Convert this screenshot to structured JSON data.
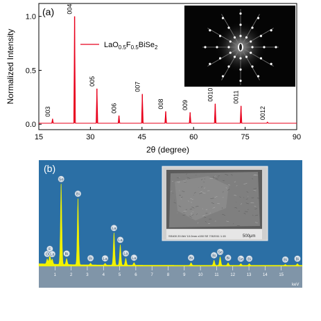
{
  "panel_a": {
    "label": "(a)",
    "legend": {
      "prefix": "LaO",
      "o_sub": "0.5",
      "f": "F",
      "f_sub": "0.5",
      "suffix": "BiSe",
      "se_sub": "2"
    }
  },
  "panel_b": {
    "label": "(b)",
    "x_unit": "keV",
    "inset_scale": "500μm",
    "inset_caption": "SS400 20.0kV 10.0mm x150 SE 7/3/2011 1:15"
  },
  "chart_data": [
    {
      "type": "line",
      "title": "",
      "xlabel": "2θ (degree)",
      "ylabel": "Normalized Intensity",
      "xlim": [
        15,
        90
      ],
      "ylim": [
        -0.05,
        1.12
      ],
      "xticks": [
        15,
        30,
        45,
        60,
        75,
        90
      ],
      "yticks": [
        0.0,
        0.5,
        1.0
      ],
      "ytick_labels": [
        "0.0",
        "0.5",
        "1.0"
      ],
      "grid": false,
      "legend_position": "top-right",
      "series": [
        {
          "name": "LaO0.5F0.5BiSe2",
          "color": "#e8001c",
          "baseline": 0.01,
          "peaks": [
            {
              "label": "003",
              "x": 19.0,
              "y": 0.05
            },
            {
              "label": "004",
              "x": 25.4,
              "y": 1.0
            },
            {
              "label": "005",
              "x": 31.9,
              "y": 0.33
            },
            {
              "label": "006",
              "x": 38.3,
              "y": 0.08
            },
            {
              "label": "007",
              "x": 45.1,
              "y": 0.28
            },
            {
              "label": "008",
              "x": 51.9,
              "y": 0.12
            },
            {
              "label": "009",
              "x": 59.0,
              "y": 0.11
            },
            {
              "label": "0010",
              "x": 66.3,
              "y": 0.19
            },
            {
              "label": "0011",
              "x": 73.8,
              "y": 0.17
            },
            {
              "label": "0012",
              "x": 81.5,
              "y": 0.02
            }
          ]
        }
      ]
    },
    {
      "type": "area",
      "title": "",
      "xlabel": "",
      "ylabel": "",
      "xlim": [
        0,
        16.3
      ],
      "xticks": [
        1,
        2,
        3,
        4,
        5,
        6,
        7,
        8,
        9,
        10,
        11,
        12,
        13,
        14,
        15
      ],
      "color": "#f2f200",
      "background": "#2b6fa5",
      "series": [
        {
          "name": "",
          "peaks": [
            {
              "label": "O",
              "x": 0.52,
              "y": 0.06
            },
            {
              "label": "F",
              "x": 0.68,
              "y": 0.12
            },
            {
              "label": "La",
              "x": 0.83,
              "y": 0.06
            },
            {
              "label": "Se",
              "x": 1.38,
              "y": 0.95
            },
            {
              "label": "Bi",
              "x": 1.72,
              "y": 0.07
            },
            {
              "label": "Bi",
              "x": 2.42,
              "y": 0.78
            },
            {
              "label": "Bi",
              "x": 3.2,
              "y": 0.02
            },
            {
              "label": "La",
              "x": 4.1,
              "y": 0.02
            },
            {
              "label": "La",
              "x": 4.65,
              "y": 0.38
            },
            {
              "label": "La",
              "x": 5.04,
              "y": 0.24
            },
            {
              "label": "La",
              "x": 5.38,
              "y": 0.08
            },
            {
              "label": "La",
              "x": 5.89,
              "y": 0.03
            },
            {
              "label": "Bi",
              "x": 9.42,
              "y": 0.03
            },
            {
              "label": "Bi",
              "x": 10.84,
              "y": 0.06
            },
            {
              "label": "Se",
              "x": 11.22,
              "y": 0.1
            },
            {
              "label": "Bi",
              "x": 11.71,
              "y": 0.03
            },
            {
              "label": "Se",
              "x": 12.5,
              "y": 0.02
            },
            {
              "label": "Bi",
              "x": 13.02,
              "y": 0.02
            },
            {
              "label": "Bi",
              "x": 15.25,
              "y": 0.01
            },
            {
              "label": "Bi",
              "x": 16.0,
              "y": 0.02
            }
          ]
        }
      ]
    }
  ]
}
